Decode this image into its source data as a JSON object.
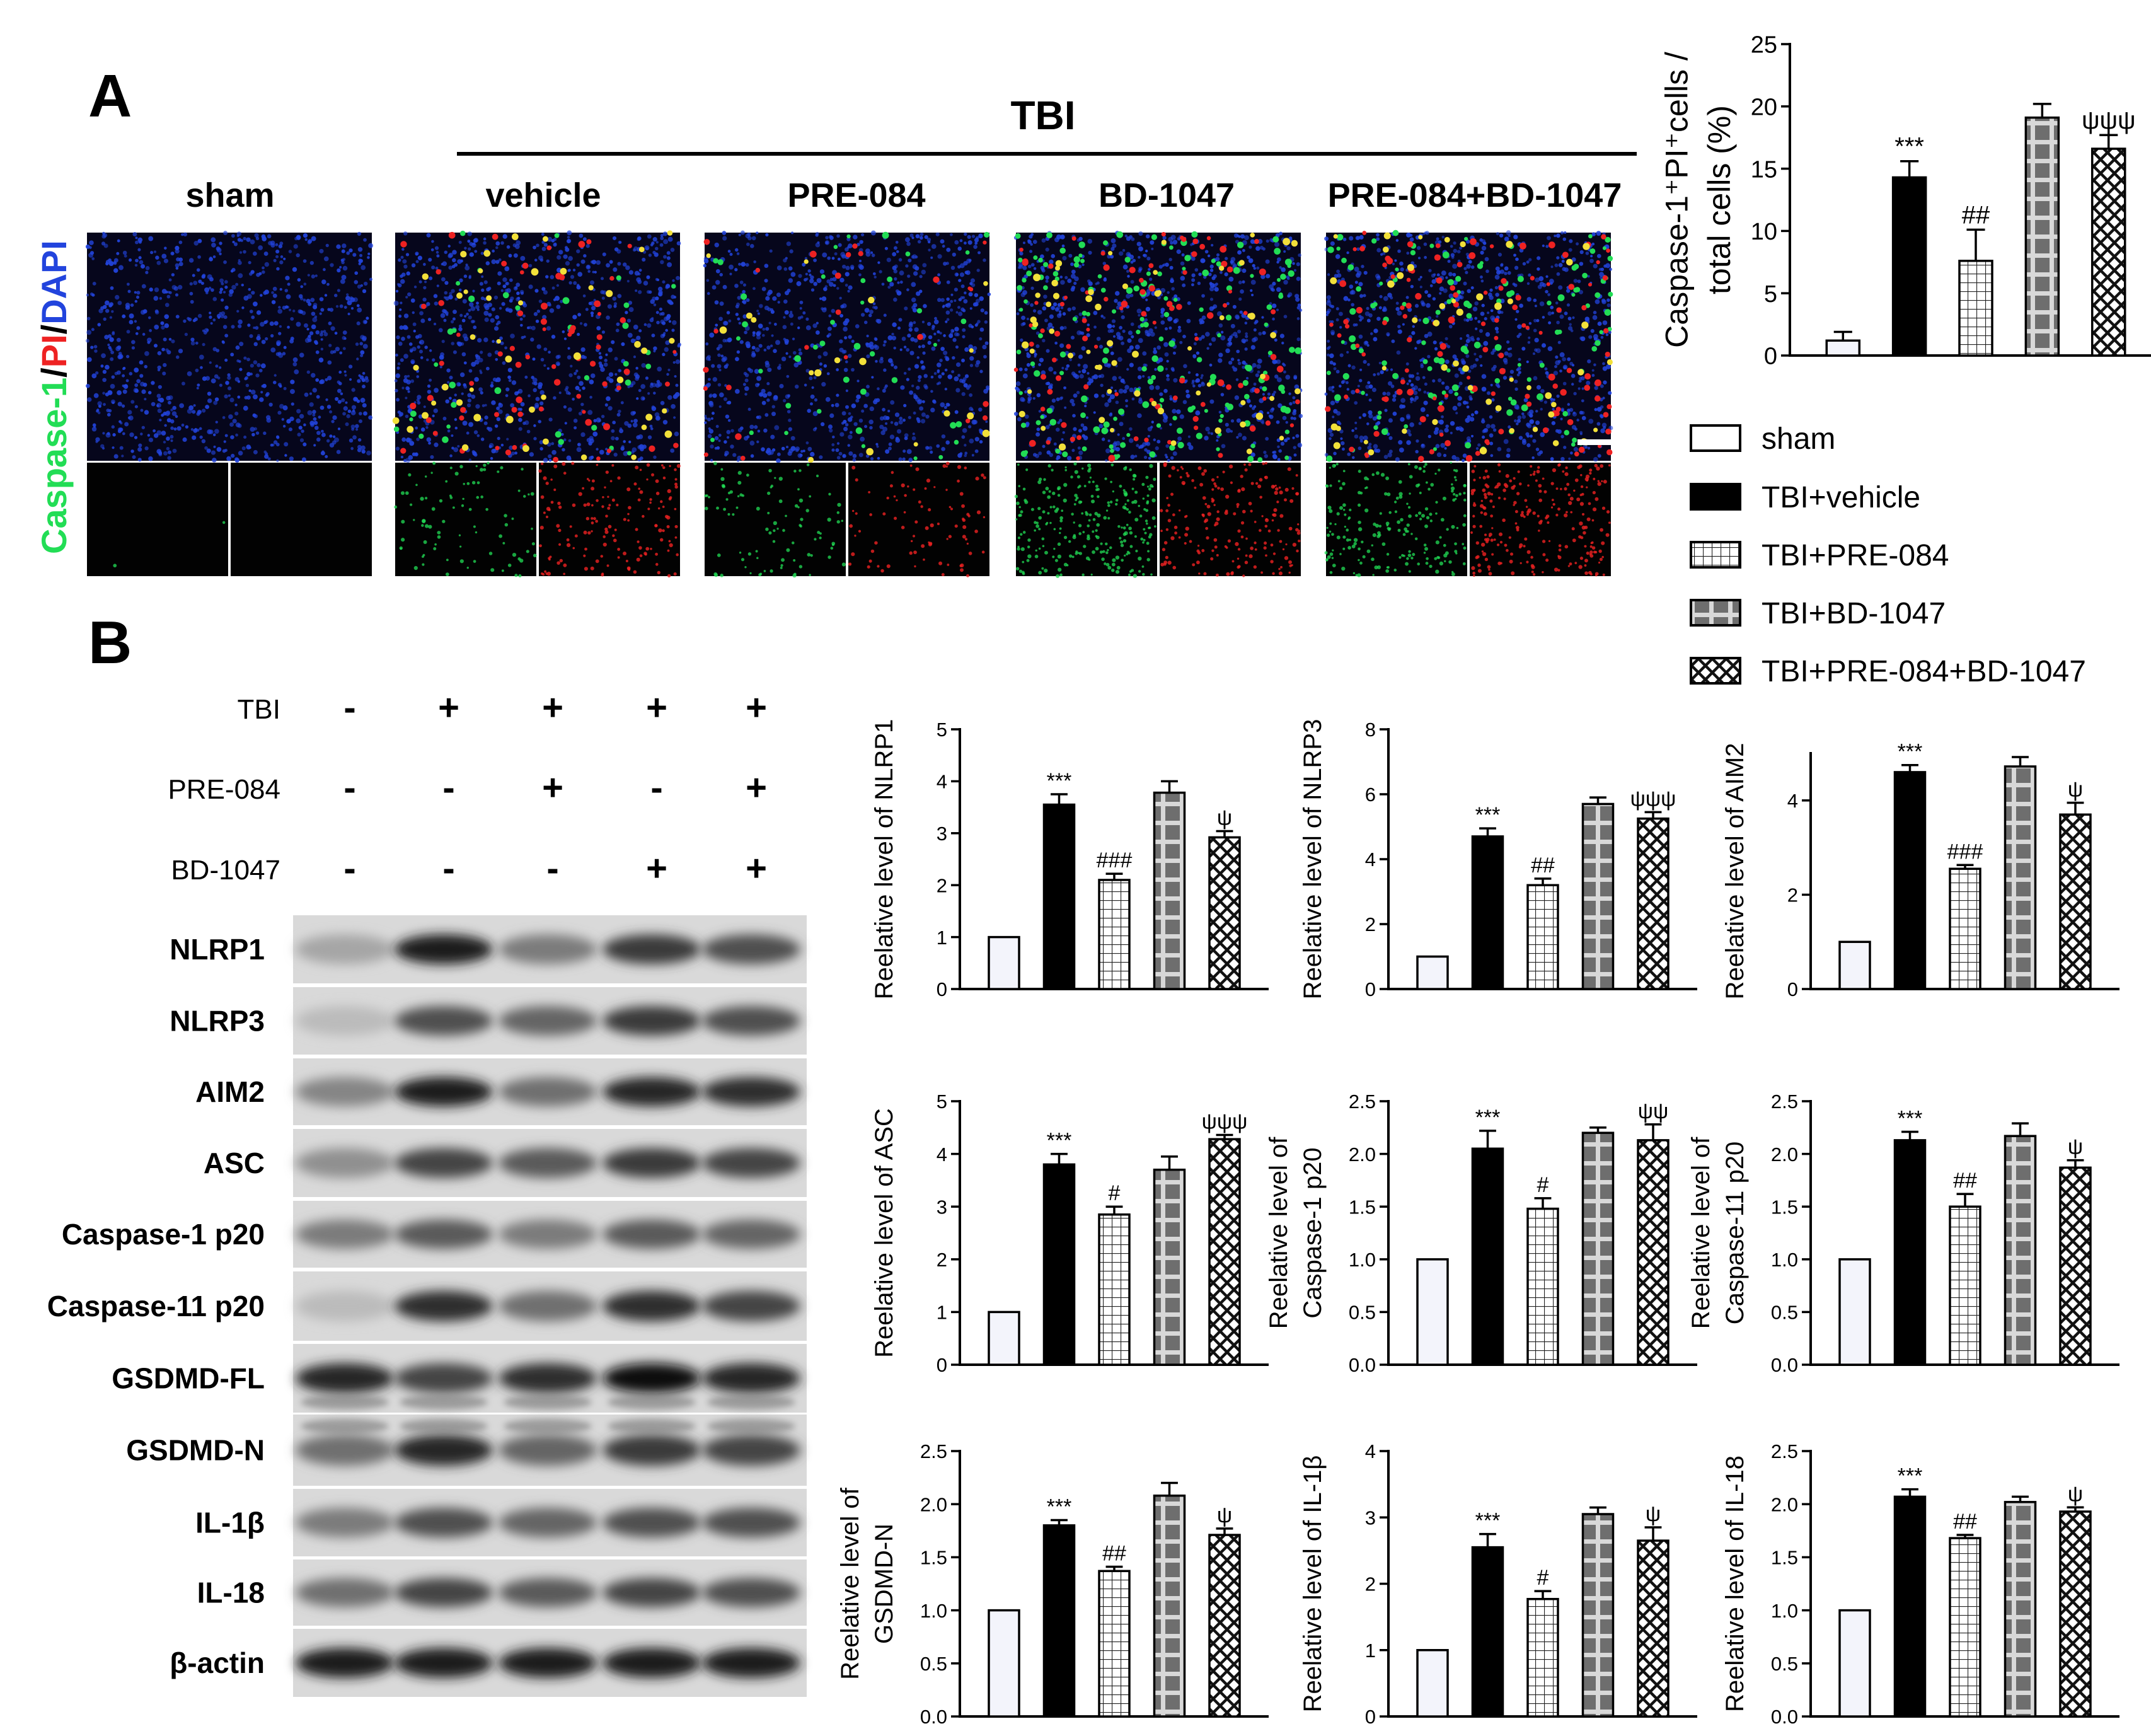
{
  "panelA": {
    "letter": "A",
    "tbi_label": "TBI",
    "groups": [
      "sham",
      "vehicle",
      "PRE-084",
      "BD-1047",
      "PRE-084+BD-1047"
    ],
    "stain_label": {
      "part1": "Caspase-1",
      "sep1": "/",
      "part2": "PI",
      "sep2": "/",
      "part3": "DAPI"
    },
    "stain_colors": {
      "caspase": "#22dd55",
      "pi": "#ee2222",
      "dapi": "#2244dd"
    }
  },
  "panelB": {
    "letter": "B",
    "treatment_rows": [
      {
        "label": "TBI",
        "signs": [
          "-",
          "+",
          "+",
          "+",
          "+"
        ]
      },
      {
        "label": "PRE-084",
        "signs": [
          "-",
          "-",
          "+",
          "-",
          "+"
        ]
      },
      {
        "label": "BD-1047",
        "signs": [
          "-",
          "-",
          "-",
          "+",
          "+"
        ]
      }
    ],
    "blots": [
      {
        "label": "NLRP1",
        "intensity": [
          0.3,
          0.95,
          0.5,
          0.8,
          0.7
        ]
      },
      {
        "label": "NLRP3",
        "intensity": [
          0.2,
          0.7,
          0.6,
          0.8,
          0.7
        ]
      },
      {
        "label": "AIM2",
        "intensity": [
          0.45,
          0.95,
          0.55,
          0.9,
          0.85
        ]
      },
      {
        "label": "ASC",
        "intensity": [
          0.4,
          0.75,
          0.65,
          0.8,
          0.75
        ]
      },
      {
        "label": "Caspase-1 p20",
        "intensity": [
          0.5,
          0.65,
          0.5,
          0.65,
          0.6
        ]
      },
      {
        "label": "Caspase-11 p20",
        "intensity": [
          0.2,
          0.85,
          0.55,
          0.85,
          0.75
        ]
      },
      {
        "label": "GSDMD-FL",
        "intensity": [
          0.9,
          0.75,
          0.85,
          1.0,
          0.9
        ]
      },
      {
        "label": "GSDMD-N",
        "intensity": [
          0.55,
          0.9,
          0.6,
          0.8,
          0.75
        ]
      },
      {
        "label": "IL-1β",
        "intensity": [
          0.5,
          0.7,
          0.6,
          0.7,
          0.7
        ]
      },
      {
        "label": "IL-18",
        "intensity": [
          0.55,
          0.75,
          0.65,
          0.75,
          0.7
        ]
      },
      {
        "label": "β-actin",
        "intensity": [
          0.95,
          0.95,
          0.95,
          0.95,
          0.95
        ]
      }
    ]
  },
  "legend": {
    "entries": [
      "sham",
      "TBI+vehicle",
      "TBI+PRE-084",
      "TBI+BD-1047",
      "TBI+PRE-084+BD-1047"
    ],
    "patterns": [
      "white",
      "black",
      "grid",
      "gray-plaid",
      "crosshatch"
    ]
  },
  "chart_data": [
    {
      "id": "caspase1_pi",
      "type": "bar",
      "ylabel_lines": [
        "Caspase-1⁺PI⁺cells /",
        "total cells (%)"
      ],
      "ylim": [
        0,
        25
      ],
      "yticks": [
        0,
        5,
        10,
        15,
        20,
        25
      ],
      "values": [
        1.2,
        14.3,
        7.6,
        19.1,
        16.6
      ],
      "errors": [
        0.7,
        1.3,
        2.5,
        1.1,
        1.1
      ],
      "annotations": [
        "",
        "***",
        "##",
        "",
        "ψψψ"
      ]
    },
    {
      "id": "nlrp1",
      "type": "bar",
      "ylabel_lines": [
        "Reelative level of NLRP1"
      ],
      "ylim": [
        0,
        5
      ],
      "yticks": [
        0,
        1,
        2,
        3,
        4,
        5
      ],
      "values": [
        1,
        3.55,
        2.1,
        3.78,
        2.92
      ],
      "errors": [
        0,
        0.2,
        0.12,
        0.22,
        0.12
      ],
      "annotations": [
        "",
        "***",
        "###",
        "",
        "ψ"
      ]
    },
    {
      "id": "nlrp3",
      "type": "bar",
      "ylabel_lines": [
        "Reelative level of NLRP3"
      ],
      "ylim": [
        0,
        8
      ],
      "yticks": [
        0,
        2,
        4,
        6,
        8
      ],
      "values": [
        1,
        4.7,
        3.2,
        5.7,
        5.25
      ],
      "errors": [
        0,
        0.25,
        0.2,
        0.2,
        0.2
      ],
      "annotations": [
        "",
        "***",
        "##",
        "",
        "ψψψ"
      ]
    },
    {
      "id": "aim2",
      "type": "bar",
      "ylabel_lines": [
        "Reelative level of AIM2"
      ],
      "ylim": [
        0,
        5
      ],
      "yticks": [
        0,
        2,
        4
      ],
      "values": [
        1,
        4.6,
        2.55,
        4.72,
        3.7
      ],
      "errors": [
        0,
        0.15,
        0.08,
        0.2,
        0.25
      ],
      "annotations": [
        "",
        "***",
        "###",
        "",
        "ψ"
      ]
    },
    {
      "id": "asc",
      "type": "bar",
      "ylabel_lines": [
        "Reelative level of ASC"
      ],
      "ylim": [
        0,
        5
      ],
      "yticks": [
        0,
        1,
        2,
        3,
        4,
        5
      ],
      "values": [
        1,
        3.8,
        2.85,
        3.7,
        4.28
      ],
      "errors": [
        0,
        0.2,
        0.15,
        0.25,
        0.08
      ],
      "annotations": [
        "",
        "***",
        "#",
        "",
        "ψψψ"
      ]
    },
    {
      "id": "caspase1_p20",
      "type": "bar",
      "ylabel_lines": [
        "Reelative level of",
        "Caspase-1 p20"
      ],
      "ylim": [
        0,
        2.5
      ],
      "yticks": [
        0.0,
        0.5,
        1.0,
        1.5,
        2.0,
        2.5
      ],
      "values": [
        1,
        2.05,
        1.48,
        2.2,
        2.13
      ],
      "errors": [
        0,
        0.17,
        0.1,
        0.05,
        0.15
      ],
      "annotations": [
        "",
        "***",
        "#",
        "",
        "ψψ"
      ]
    },
    {
      "id": "caspase11_p20",
      "type": "bar",
      "ylabel_lines": [
        "Reelative level of",
        "Caspase-11 p20"
      ],
      "ylim": [
        0,
        2.5
      ],
      "yticks": [
        0.0,
        0.5,
        1.0,
        1.5,
        2.0,
        2.5
      ],
      "values": [
        1,
        2.13,
        1.5,
        2.17,
        1.87
      ],
      "errors": [
        0,
        0.08,
        0.12,
        0.12,
        0.07
      ],
      "annotations": [
        "",
        "***",
        "##",
        "",
        "ψ"
      ]
    },
    {
      "id": "gsdmd_n",
      "type": "bar",
      "ylabel_lines": [
        "Reelative level of",
        "GSDMD-N"
      ],
      "ylim": [
        0,
        2.5
      ],
      "yticks": [
        0.0,
        0.5,
        1.0,
        1.5,
        2.0,
        2.5
      ],
      "values": [
        1,
        1.8,
        1.37,
        2.08,
        1.71
      ],
      "errors": [
        0,
        0.05,
        0.04,
        0.12,
        0.06
      ],
      "annotations": [
        "",
        "***",
        "##",
        "",
        "ψ"
      ]
    },
    {
      "id": "il1b",
      "type": "bar",
      "ylabel_lines": [
        "Reelative level of IL-1β"
      ],
      "ylim": [
        0,
        4
      ],
      "yticks": [
        0,
        1,
        2,
        3,
        4
      ],
      "values": [
        1,
        2.55,
        1.77,
        3.05,
        2.65
      ],
      "errors": [
        0,
        0.2,
        0.12,
        0.1,
        0.2
      ],
      "annotations": [
        "",
        "***",
        "#",
        "",
        "ψ"
      ]
    },
    {
      "id": "il18",
      "type": "bar",
      "ylabel_lines": [
        "Reelative level of IL-18"
      ],
      "ylim": [
        0,
        2.5
      ],
      "yticks": [
        0.0,
        0.5,
        1.0,
        1.5,
        2.0,
        2.5
      ],
      "values": [
        1,
        2.07,
        1.68,
        2.02,
        1.93
      ],
      "errors": [
        0,
        0.07,
        0.03,
        0.05,
        0.04
      ],
      "annotations": [
        "",
        "***",
        "##",
        "",
        "ψ"
      ]
    }
  ]
}
